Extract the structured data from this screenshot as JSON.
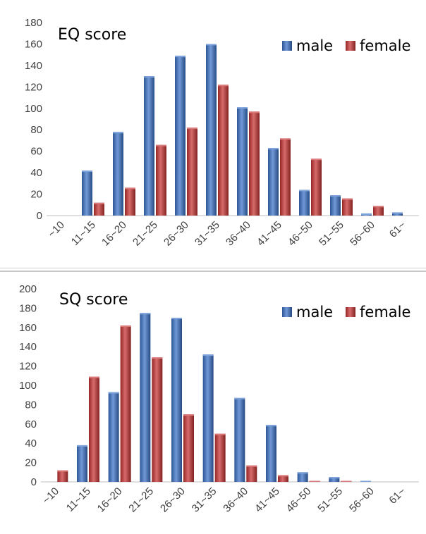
{
  "chart_data": [
    {
      "type": "bar",
      "title": "EQ score",
      "categories": [
        "~10",
        "11~15",
        "16~20",
        "21~25",
        "26~30",
        "31~35",
        "36~40",
        "41~45",
        "46~50",
        "51~55",
        "56~60",
        "61~"
      ],
      "series": [
        {
          "name": "male",
          "color": "#3a72c8",
          "values": [
            0,
            42,
            78,
            130,
            149,
            160,
            101,
            63,
            24,
            19,
            2,
            3
          ]
        },
        {
          "name": "female",
          "color": "#c83232",
          "values": [
            0,
            12,
            26,
            66,
            82,
            122,
            97,
            72,
            53,
            16,
            9,
            0
          ]
        }
      ],
      "ylim": [
        0,
        180
      ],
      "yticks": [
        0,
        20,
        40,
        60,
        80,
        100,
        120,
        140,
        160,
        180
      ],
      "legend_position": "top-right",
      "grid": false
    },
    {
      "type": "bar",
      "title": "SQ score",
      "categories": [
        "~10",
        "11~15",
        "16~20",
        "21~25",
        "26~30",
        "31~35",
        "36~40",
        "41~45",
        "46~50",
        "51~55",
        "56~60",
        "61~"
      ],
      "series": [
        {
          "name": "male",
          "color": "#3a72c8",
          "values": [
            0,
            38,
            93,
            175,
            170,
            132,
            87,
            59,
            10,
            5,
            1,
            0
          ]
        },
        {
          "name": "female",
          "color": "#c83232",
          "values": [
            12,
            109,
            162,
            129,
            70,
            50,
            17,
            7,
            1,
            1,
            0,
            0
          ]
        }
      ],
      "ylim": [
        0,
        200
      ],
      "yticks": [
        0,
        20,
        40,
        60,
        80,
        100,
        120,
        140,
        160,
        180,
        200
      ],
      "legend_position": "top-right",
      "grid": false
    }
  ]
}
